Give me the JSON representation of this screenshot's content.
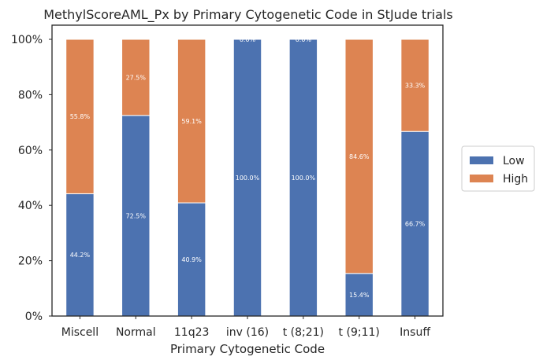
{
  "chart_data": {
    "type": "bar",
    "stacked": true,
    "normalized": true,
    "title": "MethylScoreAML_Px by Primary Cytogenetic Code in StJude trials",
    "xlabel": "Primary Cytogenetic Code",
    "ylabel": "",
    "ylim": [
      0,
      100
    ],
    "yticks": [
      "0%",
      "20%",
      "40%",
      "60%",
      "80%",
      "100%"
    ],
    "grid": false,
    "legend_position": "right",
    "categories": [
      "Miscell",
      "Normal",
      "11q23",
      "inv (16)",
      "t (8;21)",
      "t (9;11)",
      "Insuff"
    ],
    "series": [
      {
        "name": "Low",
        "color": "#4c72b0",
        "values": [
          44.2,
          72.5,
          40.9,
          100.0,
          100.0,
          15.4,
          66.7
        ],
        "labels": [
          "44.2%",
          "72.5%",
          "40.9%",
          "100.0%",
          "100.0%",
          "15.4%",
          "66.7%"
        ]
      },
      {
        "name": "High",
        "color": "#dd8452",
        "values": [
          55.8,
          27.5,
          59.1,
          0.0,
          0.0,
          84.6,
          33.3
        ],
        "labels": [
          "55.8%",
          "27.5%",
          "59.1%",
          "0.0%",
          "0.0%",
          "84.6%",
          "33.3%"
        ]
      }
    ]
  }
}
